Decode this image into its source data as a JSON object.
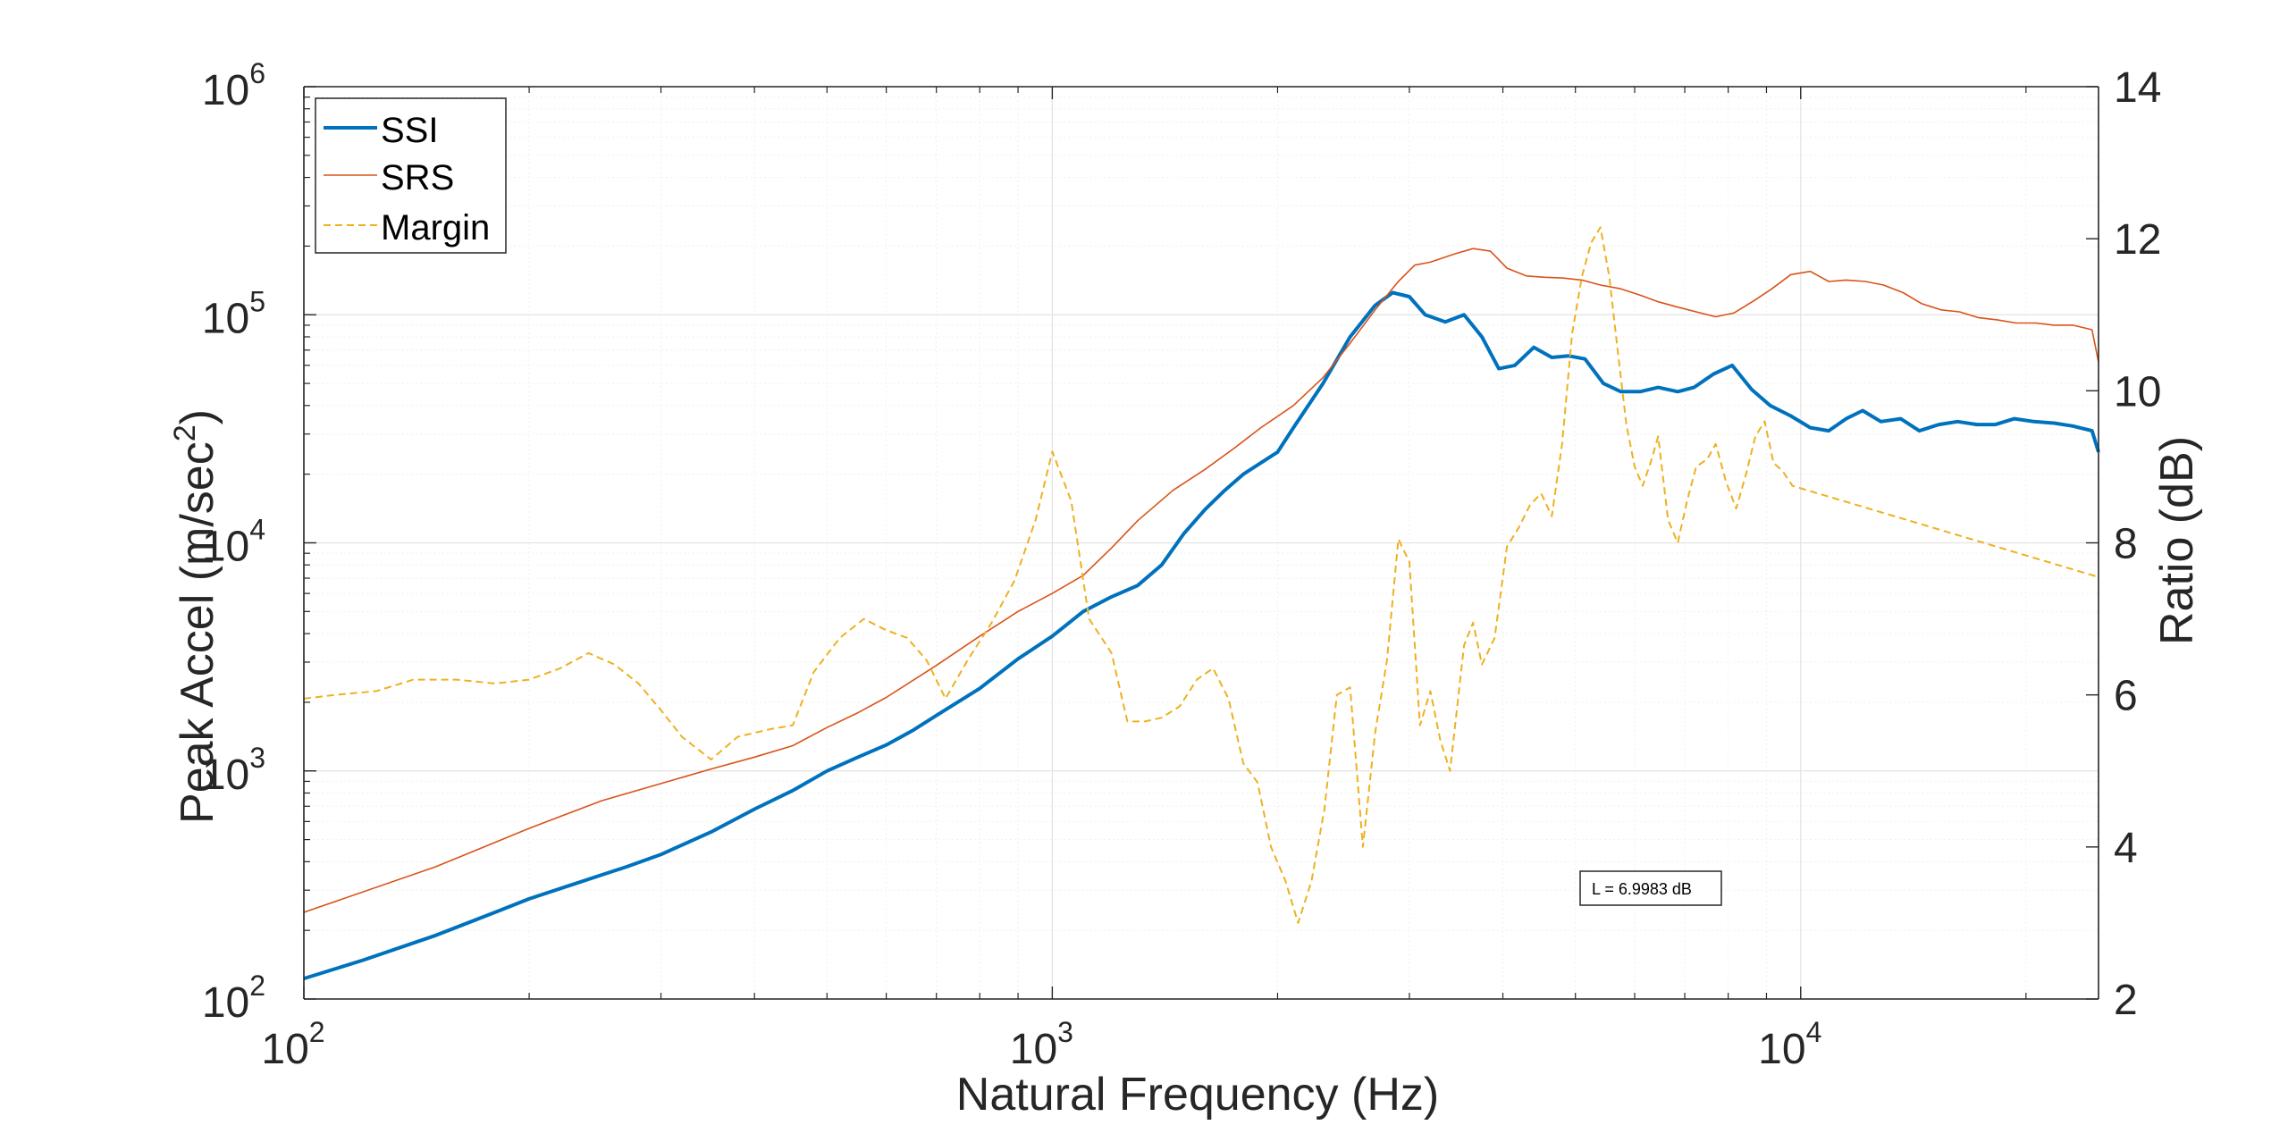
{
  "chart_data": {
    "type": "line",
    "xlabel": "Natural Frequency (Hz)",
    "ylabel": "Peak Accel (m/sec",
    "ylabel_sup": "2",
    "ylabel_close": ")",
    "y2label": "Ratio (dB)",
    "xscale": "log",
    "yscale": "log",
    "xlim": [
      100,
      25000
    ],
    "ylim": [
      100,
      1000000
    ],
    "y2lim": [
      2,
      14
    ],
    "grid": true,
    "legend_position": "top-left",
    "x_ticks": [
      {
        "base": "10",
        "exp": "2",
        "value": 100
      },
      {
        "base": "10",
        "exp": "3",
        "value": 1000
      },
      {
        "base": "10",
        "exp": "4",
        "value": 10000
      }
    ],
    "y_ticks": [
      {
        "base": "10",
        "exp": "2",
        "value": 100
      },
      {
        "base": "10",
        "exp": "3",
        "value": 1000
      },
      {
        "base": "10",
        "exp": "4",
        "value": 10000
      },
      {
        "base": "10",
        "exp": "5",
        "value": 100000
      },
      {
        "base": "10",
        "exp": "6",
        "value": 1000000
      }
    ],
    "y2_ticks": [
      "2",
      "4",
      "6",
      "8",
      "10",
      "12",
      "14"
    ],
    "annotation": "L = 6.9983 dB",
    "series": [
      {
        "name": "SSI",
        "color": "#0072BD",
        "dash": "solid",
        "axis": "left",
        "points": [
          [
            100,
            123
          ],
          [
            120,
            148
          ],
          [
            150,
            190
          ],
          [
            180,
            240
          ],
          [
            200,
            275
          ],
          [
            250,
            350
          ],
          [
            270,
            380
          ],
          [
            300,
            430
          ],
          [
            350,
            540
          ],
          [
            400,
            680
          ],
          [
            450,
            820
          ],
          [
            500,
            1000
          ],
          [
            550,
            1150
          ],
          [
            600,
            1300
          ],
          [
            650,
            1500
          ],
          [
            700,
            1750
          ],
          [
            800,
            2300
          ],
          [
            900,
            3100
          ],
          [
            1000,
            3900
          ],
          [
            1100,
            5000
          ],
          [
            1200,
            5800
          ],
          [
            1300,
            6500
          ],
          [
            1400,
            8000
          ],
          [
            1500,
            11000
          ],
          [
            1600,
            14000
          ],
          [
            1700,
            17000
          ],
          [
            1800,
            20000
          ],
          [
            2000,
            25000
          ],
          [
            2100,
            32000
          ],
          [
            2300,
            50000
          ],
          [
            2500,
            80000
          ],
          [
            2700,
            110000
          ],
          [
            2850,
            125000
          ],
          [
            3000,
            120000
          ],
          [
            3150,
            100000
          ],
          [
            3350,
            93000
          ],
          [
            3550,
            100000
          ],
          [
            3750,
            80000
          ],
          [
            3950,
            58000
          ],
          [
            4150,
            60000
          ],
          [
            4400,
            72000
          ],
          [
            4650,
            65000
          ],
          [
            4900,
            66000
          ],
          [
            5150,
            64000
          ],
          [
            5450,
            50000
          ],
          [
            5750,
            46000
          ],
          [
            6100,
            46000
          ],
          [
            6450,
            48000
          ],
          [
            6850,
            46000
          ],
          [
            7200,
            48000
          ],
          [
            7650,
            55000
          ],
          [
            8100,
            60000
          ],
          [
            8600,
            47000
          ],
          [
            9100,
            40000
          ],
          [
            9700,
            36000
          ],
          [
            10300,
            32000
          ],
          [
            10900,
            31000
          ],
          [
            11500,
            35000
          ],
          [
            12100,
            38000
          ],
          [
            12800,
            34000
          ],
          [
            13600,
            35000
          ],
          [
            14400,
            31000
          ],
          [
            15300,
            33000
          ],
          [
            16200,
            34000
          ],
          [
            17200,
            33000
          ],
          [
            18200,
            33000
          ],
          [
            19300,
            35000
          ],
          [
            20500,
            34000
          ],
          [
            21800,
            33500
          ],
          [
            23100,
            32500
          ],
          [
            24500,
            31000
          ],
          [
            25000,
            25000
          ]
        ]
      },
      {
        "name": "SRS",
        "color": "#D95319",
        "dash": "solid",
        "axis": "left",
        "points": [
          [
            100,
            240
          ],
          [
            150,
            380
          ],
          [
            200,
            560
          ],
          [
            250,
            740
          ],
          [
            300,
            880
          ],
          [
            350,
            1020
          ],
          [
            400,
            1150
          ],
          [
            450,
            1290
          ],
          [
            500,
            1550
          ],
          [
            550,
            1800
          ],
          [
            600,
            2100
          ],
          [
            700,
            2900
          ],
          [
            800,
            3900
          ],
          [
            900,
            5000
          ],
          [
            1000,
            6000
          ],
          [
            1100,
            7200
          ],
          [
            1200,
            9500
          ],
          [
            1300,
            12500
          ],
          [
            1450,
            17000
          ],
          [
            1600,
            21000
          ],
          [
            1750,
            26000
          ],
          [
            1900,
            32000
          ],
          [
            2100,
            40000
          ],
          [
            2300,
            53000
          ],
          [
            2500,
            75000
          ],
          [
            2700,
            105000
          ],
          [
            2900,
            140000
          ],
          [
            3050,
            165000
          ],
          [
            3200,
            170000
          ],
          [
            3450,
            185000
          ],
          [
            3650,
            195000
          ],
          [
            3850,
            190000
          ],
          [
            4050,
            160000
          ],
          [
            4300,
            148000
          ],
          [
            4550,
            146000
          ],
          [
            4800,
            145000
          ],
          [
            5100,
            142000
          ],
          [
            5400,
            135000
          ],
          [
            5750,
            130000
          ],
          [
            6100,
            122000
          ],
          [
            6450,
            114000
          ],
          [
            6850,
            108000
          ],
          [
            7250,
            103000
          ],
          [
            7700,
            98000
          ],
          [
            8150,
            102000
          ],
          [
            8650,
            115000
          ],
          [
            9150,
            130000
          ],
          [
            9700,
            150000
          ],
          [
            10300,
            155000
          ],
          [
            10900,
            140000
          ],
          [
            11500,
            142000
          ],
          [
            12200,
            140000
          ],
          [
            12900,
            135000
          ],
          [
            13700,
            125000
          ],
          [
            14500,
            112000
          ],
          [
            15400,
            105000
          ],
          [
            16300,
            103000
          ],
          [
            17300,
            97000
          ],
          [
            18300,
            95000
          ],
          [
            19400,
            92000
          ],
          [
            20600,
            92000
          ],
          [
            21800,
            90000
          ],
          [
            23100,
            90000
          ],
          [
            24500,
            86000
          ],
          [
            26000,
            84000
          ],
          [
            27600,
            82000
          ],
          [
            29200,
            80000
          ],
          [
            25000,
            62000
          ]
        ]
      },
      {
        "name": "Margin",
        "color": "#EDB120",
        "dash": "dashed",
        "axis": "right",
        "points": [
          [
            100,
            5.95
          ],
          [
            110,
            6.0
          ],
          [
            125,
            6.05
          ],
          [
            140,
            6.2
          ],
          [
            160,
            6.2
          ],
          [
            180,
            6.15
          ],
          [
            200,
            6.2
          ],
          [
            220,
            6.35
          ],
          [
            240,
            6.55
          ],
          [
            260,
            6.4
          ],
          [
            280,
            6.15
          ],
          [
            300,
            5.8
          ],
          [
            320,
            5.45
          ],
          [
            350,
            5.15
          ],
          [
            380,
            5.45
          ],
          [
            420,
            5.55
          ],
          [
            450,
            5.6
          ],
          [
            480,
            6.3
          ],
          [
            520,
            6.75
          ],
          [
            560,
            7.0
          ],
          [
            600,
            6.85
          ],
          [
            640,
            6.75
          ],
          [
            680,
            6.45
          ],
          [
            720,
            5.95
          ],
          [
            770,
            6.45
          ],
          [
            830,
            6.95
          ],
          [
            890,
            7.5
          ],
          [
            950,
            8.3
          ],
          [
            1000,
            9.2
          ],
          [
            1060,
            8.55
          ],
          [
            1120,
            7.0
          ],
          [
            1200,
            6.55
          ],
          [
            1260,
            5.65
          ],
          [
            1330,
            5.65
          ],
          [
            1400,
            5.7
          ],
          [
            1480,
            5.85
          ],
          [
            1560,
            6.2
          ],
          [
            1640,
            6.35
          ],
          [
            1720,
            5.95
          ],
          [
            1800,
            5.1
          ],
          [
            1880,
            4.85
          ],
          [
            1960,
            4.0
          ],
          [
            2050,
            3.55
          ],
          [
            2130,
            3.0
          ],
          [
            2220,
            3.55
          ],
          [
            2310,
            4.5
          ],
          [
            2400,
            6.0
          ],
          [
            2500,
            6.1
          ],
          [
            2600,
            4.0
          ],
          [
            2700,
            5.5
          ],
          [
            2800,
            6.45
          ],
          [
            2900,
            8.05
          ],
          [
            3000,
            7.75
          ],
          [
            3100,
            5.6
          ],
          [
            3200,
            6.05
          ],
          [
            3300,
            5.4
          ],
          [
            3400,
            5.0
          ],
          [
            3550,
            6.65
          ],
          [
            3650,
            6.95
          ],
          [
            3750,
            6.4
          ],
          [
            3900,
            6.75
          ],
          [
            4050,
            7.95
          ],
          [
            4200,
            8.2
          ],
          [
            4350,
            8.5
          ],
          [
            4500,
            8.65
          ],
          [
            4650,
            8.35
          ],
          [
            4800,
            9.3
          ],
          [
            4950,
            10.75
          ],
          [
            5100,
            11.5
          ],
          [
            5250,
            11.95
          ],
          [
            5400,
            12.15
          ],
          [
            5550,
            11.5
          ],
          [
            5700,
            10.5
          ],
          [
            5850,
            9.55
          ],
          [
            6000,
            9.0
          ],
          [
            6150,
            8.75
          ],
          [
            6300,
            9.05
          ],
          [
            6450,
            9.4
          ],
          [
            6650,
            8.3
          ],
          [
            6850,
            8.0
          ],
          [
            7050,
            8.55
          ],
          [
            7250,
            9.0
          ],
          [
            7500,
            9.1
          ],
          [
            7700,
            9.3
          ],
          [
            7950,
            8.8
          ],
          [
            8200,
            8.45
          ],
          [
            8450,
            8.9
          ],
          [
            8700,
            9.4
          ],
          [
            8950,
            9.6
          ],
          [
            9200,
            9.05
          ],
          [
            9450,
            8.95
          ],
          [
            9750,
            8.75
          ],
          [
            25000,
            7.55
          ]
        ]
      }
    ]
  }
}
